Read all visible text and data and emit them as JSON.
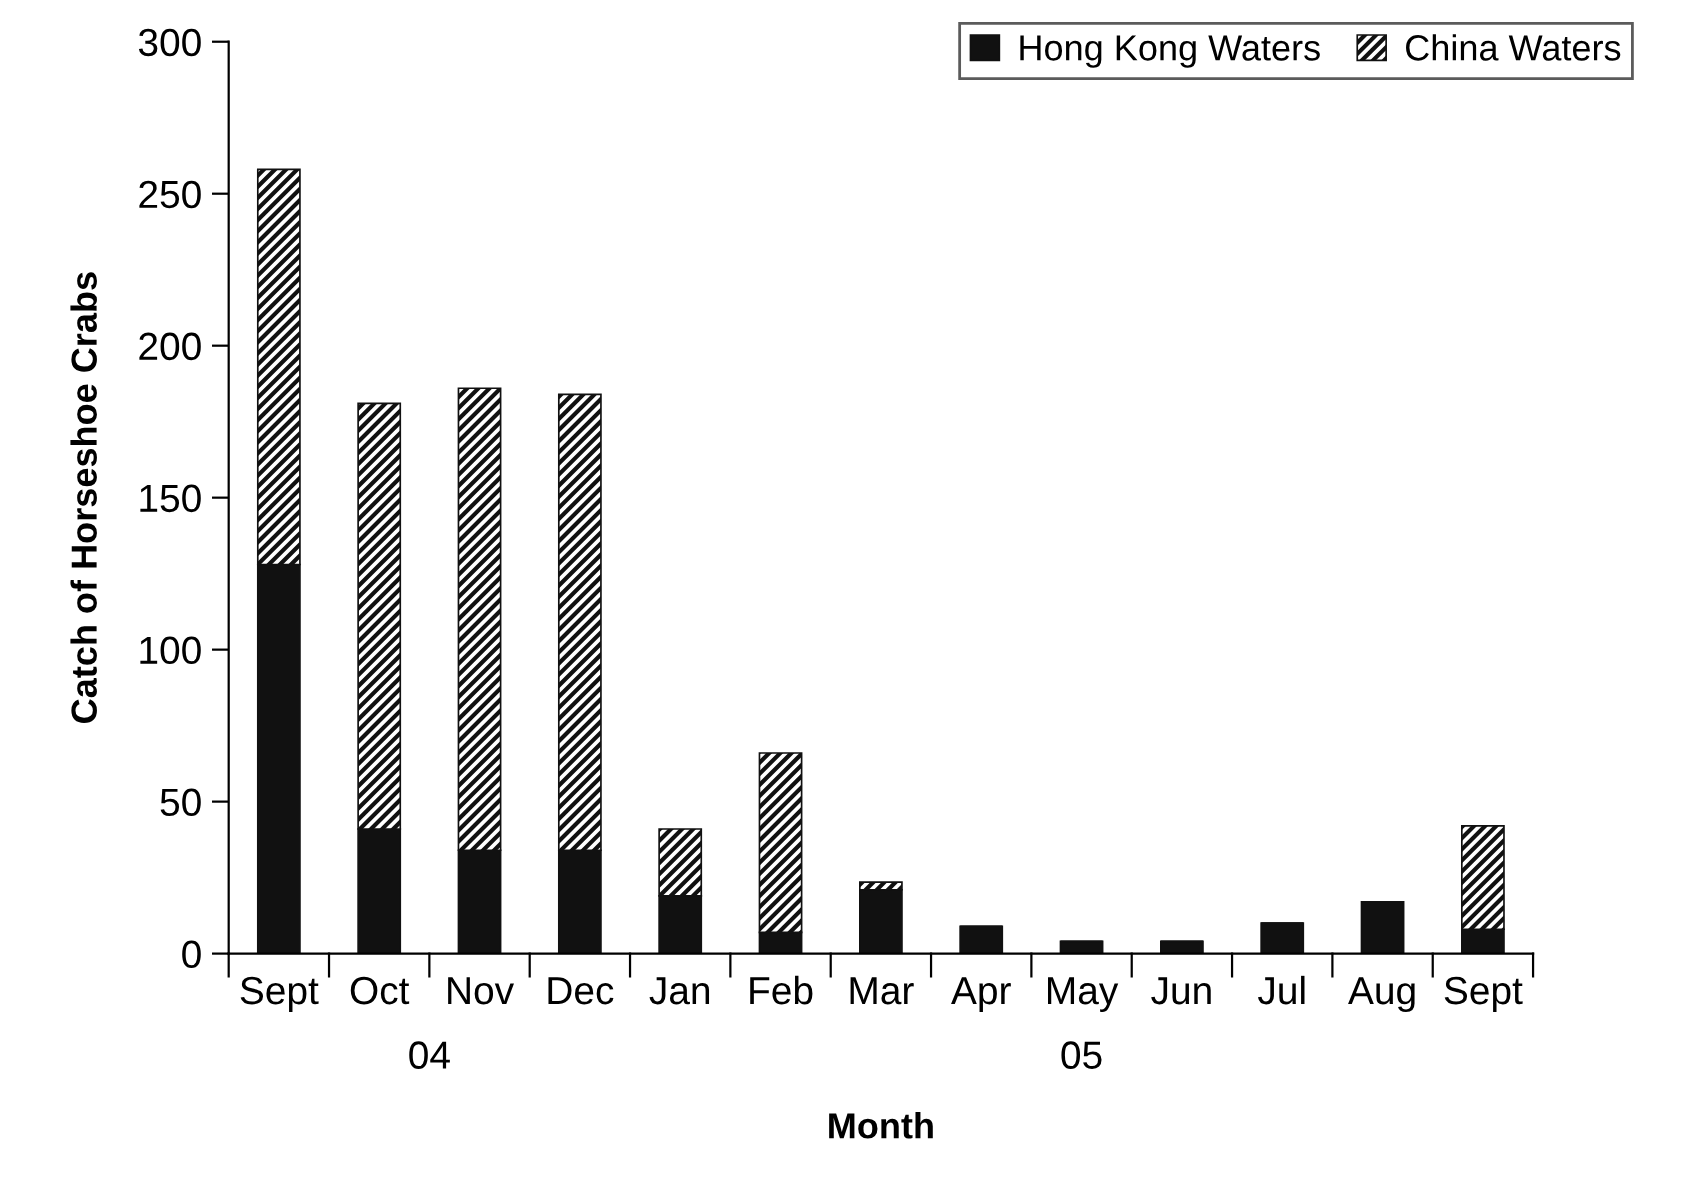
{
  "chart_data": {
    "type": "bar",
    "stacked": true,
    "xlabel": "Month",
    "ylabel": "Catch of Horseshoe Crabs",
    "categories": [
      "Sept",
      "Oct",
      "Nov",
      "Dec",
      "Jan",
      "Feb",
      "Mar",
      "Apr",
      "May",
      "Jun",
      "Jul",
      "Aug",
      "Sept"
    ],
    "series": [
      {
        "name": "Hong Kong Waters",
        "color": "#111111",
        "values": [
          128,
          41,
          34,
          34,
          19,
          7,
          21,
          9,
          4,
          4,
          10,
          17,
          8
        ]
      },
      {
        "name": "China Waters",
        "color": "#111111",
        "values": [
          130,
          140,
          152,
          150,
          22,
          59,
          2.5,
          0,
          0,
          0,
          0,
          0,
          34
        ]
      }
    ],
    "ylim": [
      0,
      300
    ],
    "yticks": [
      0,
      50,
      100,
      150,
      200,
      250,
      300
    ],
    "annotations": [
      "04",
      "05"
    ],
    "legend": "top right",
    "grid": false
  }
}
